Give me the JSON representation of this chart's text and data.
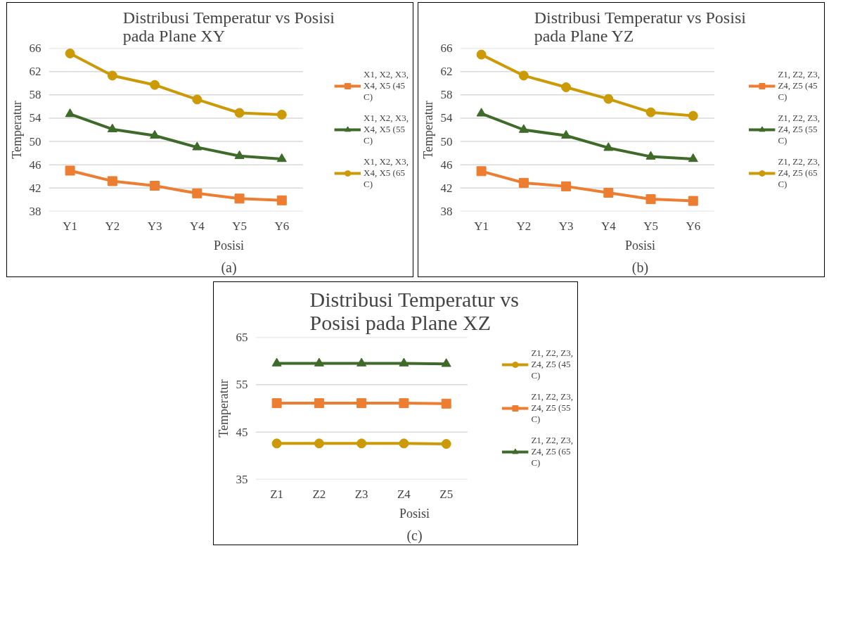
{
  "chart_data": [
    {
      "type": "line",
      "title": "Distribusi Temperatur vs Posisi\npada Plane XY",
      "xlabel": "Posisi",
      "ylabel": "Temperatur",
      "categories": [
        "Y1",
        "Y2",
        "Y3",
        "Y4",
        "Y5",
        "Y6"
      ],
      "ylim": [
        38,
        66
      ],
      "yticks": [
        38,
        42,
        46,
        50,
        54,
        58,
        62,
        66
      ],
      "grid": "y",
      "legend": "right",
      "annotations": [
        "(a)"
      ],
      "series": [
        {
          "name": "X1, X2, X3, X4, X5 (45 C)",
          "color": "#ed7d31",
          "marker": "square",
          "values": [
            45.0,
            43.2,
            42.4,
            41.1,
            40.2,
            39.9
          ]
        },
        {
          "name": "X1, X2, X3, X4, X5 (55 C)",
          "color": "#3f6b2a",
          "marker": "triangle",
          "values": [
            54.7,
            52.1,
            51.0,
            49.0,
            47.5,
            47.0
          ]
        },
        {
          "name": "X1, X2, X3, X4, X5 (65 C)",
          "color": "#cc9a06",
          "marker": "circle",
          "values": [
            65.1,
            61.3,
            59.7,
            57.2,
            54.9,
            54.6
          ]
        }
      ]
    },
    {
      "type": "line",
      "title": "Distribusi Temperatur vs Posisi\npada Plane YZ",
      "xlabel": "Posisi",
      "ylabel": "Temperatur",
      "categories": [
        "Y1",
        "Y2",
        "Y3",
        "Y4",
        "Y5",
        "Y6"
      ],
      "ylim": [
        38,
        66
      ],
      "yticks": [
        38,
        42,
        46,
        50,
        54,
        58,
        62,
        66
      ],
      "grid": "y",
      "legend": "right",
      "annotations": [
        "(b)"
      ],
      "series": [
        {
          "name": "Z1, Z2, Z3, Z4, Z5 (45 C)",
          "color": "#ed7d31",
          "marker": "square",
          "values": [
            44.9,
            42.9,
            42.3,
            41.2,
            40.1,
            39.8
          ]
        },
        {
          "name": "Z1, Z2, Z3, Z4, Z5 (55 C)",
          "color": "#3f6b2a",
          "marker": "triangle",
          "values": [
            54.8,
            52.0,
            51.0,
            48.9,
            47.4,
            47.0
          ]
        },
        {
          "name": "Z1, Z2, Z3, Z4, Z5 (65 C)",
          "color": "#cc9a06",
          "marker": "circle",
          "values": [
            64.9,
            61.3,
            59.3,
            57.3,
            55.0,
            54.4
          ]
        }
      ]
    },
    {
      "type": "line",
      "title": "Distribusi Temperatur vs\nPosisi pada Plane XZ",
      "xlabel": "Posisi",
      "ylabel": "Temperatur",
      "categories": [
        "Z1",
        "Z2",
        "Z3",
        "Z4",
        "Z5"
      ],
      "ylim": [
        35,
        65
      ],
      "yticks": [
        35,
        45,
        55,
        65
      ],
      "grid": "y",
      "legend": "right",
      "annotations": [
        "(c)"
      ],
      "series": [
        {
          "name": "Z1, Z2, Z3, Z4, Z5 (45 C)",
          "color": "#cc9a06",
          "marker": "circle",
          "values": [
            42.6,
            42.6,
            42.6,
            42.6,
            42.5
          ]
        },
        {
          "name": "Z1, Z2, Z3, Z4, Z5 (55 C)",
          "color": "#ed7d31",
          "marker": "square",
          "values": [
            51.1,
            51.1,
            51.1,
            51.1,
            51.0
          ]
        },
        {
          "name": "Z1, Z2, Z3, Z4, Z5 (65 C)",
          "color": "#3f6b2a",
          "marker": "triangle",
          "values": [
            59.5,
            59.5,
            59.5,
            59.5,
            59.4
          ]
        }
      ]
    }
  ]
}
